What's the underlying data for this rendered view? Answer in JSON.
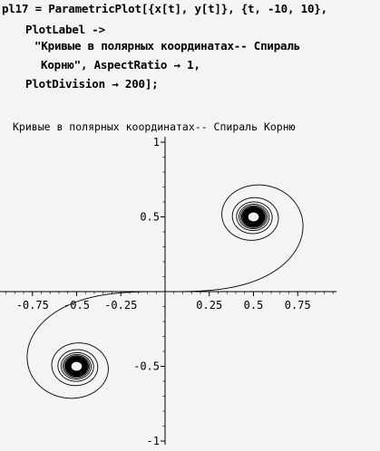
{
  "code": {
    "lines": [
      "pl17 = ParametricPlot[{x[t], y[t]}, {t, -10, 10},",
      "PlotLabel ->",
      "\"Кривые в полярных координатах-- Спираль",
      "Корню\", AspectRatio → 1,",
      "PlotDivision → 200];"
    ]
  },
  "chart_data": {
    "type": "line",
    "title": "Кривые в полярных координатах-- Спираль Корню",
    "xlabel": "",
    "ylabel": "",
    "xlim": [
      -1,
      0.97
    ],
    "ylim": [
      -1,
      1
    ],
    "xticks": [
      -0.75,
      -0.5,
      -0.25,
      0.25,
      0.5,
      0.75
    ],
    "xtick_labels": [
      "-0.75",
      "-0.5",
      "-0.25",
      "0.25",
      "0.5",
      "0.75"
    ],
    "yticks": [
      -1,
      -0.5,
      0.5,
      1
    ],
    "ytick_labels": [
      "-1",
      "-0.5",
      "0.5",
      "1"
    ],
    "grid": false,
    "series": [
      {
        "curve": "Cornu spiral (Euler spiral), parametric x(t), y(t)",
        "t_range": [
          -10,
          10
        ],
        "line_color": "#000000",
        "spiral_centers": [
          [
            0.63,
            0.63
          ],
          [
            -0.63,
            -0.63
          ]
        ]
      }
    ]
  }
}
